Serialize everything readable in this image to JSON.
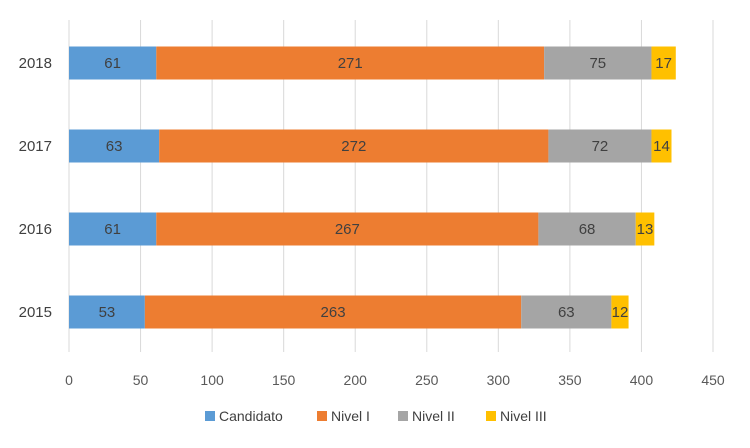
{
  "chart_data": {
    "type": "bar",
    "orientation": "horizontal",
    "stacked": true,
    "title": "",
    "xlabel": "",
    "ylabel": "",
    "categories": [
      "2018",
      "2017",
      "2016",
      "2015"
    ],
    "series": [
      {
        "name": "Candidato",
        "values": [
          61,
          63,
          61,
          53
        ],
        "color": "#5B9BD5",
        "label_color": "#404040"
      },
      {
        "name": "Nivel I",
        "values": [
          271,
          272,
          267,
          263
        ],
        "color": "#ED7D31",
        "label_color": "#404040"
      },
      {
        "name": "Nivel II",
        "values": [
          75,
          72,
          68,
          63
        ],
        "color": "#A5A5A5",
        "label_color": "#404040"
      },
      {
        "name": "Nivel III",
        "values": [
          17,
          14,
          13,
          12
        ],
        "color": "#FFC000",
        "label_color": "#404040"
      }
    ],
    "xlim": [
      0,
      450
    ],
    "xticks": [
      0,
      50,
      100,
      150,
      200,
      250,
      300,
      350,
      400,
      450
    ],
    "grid": "vertical",
    "gridline_color": "#d9d9d9",
    "legend_position": "bottom"
  }
}
